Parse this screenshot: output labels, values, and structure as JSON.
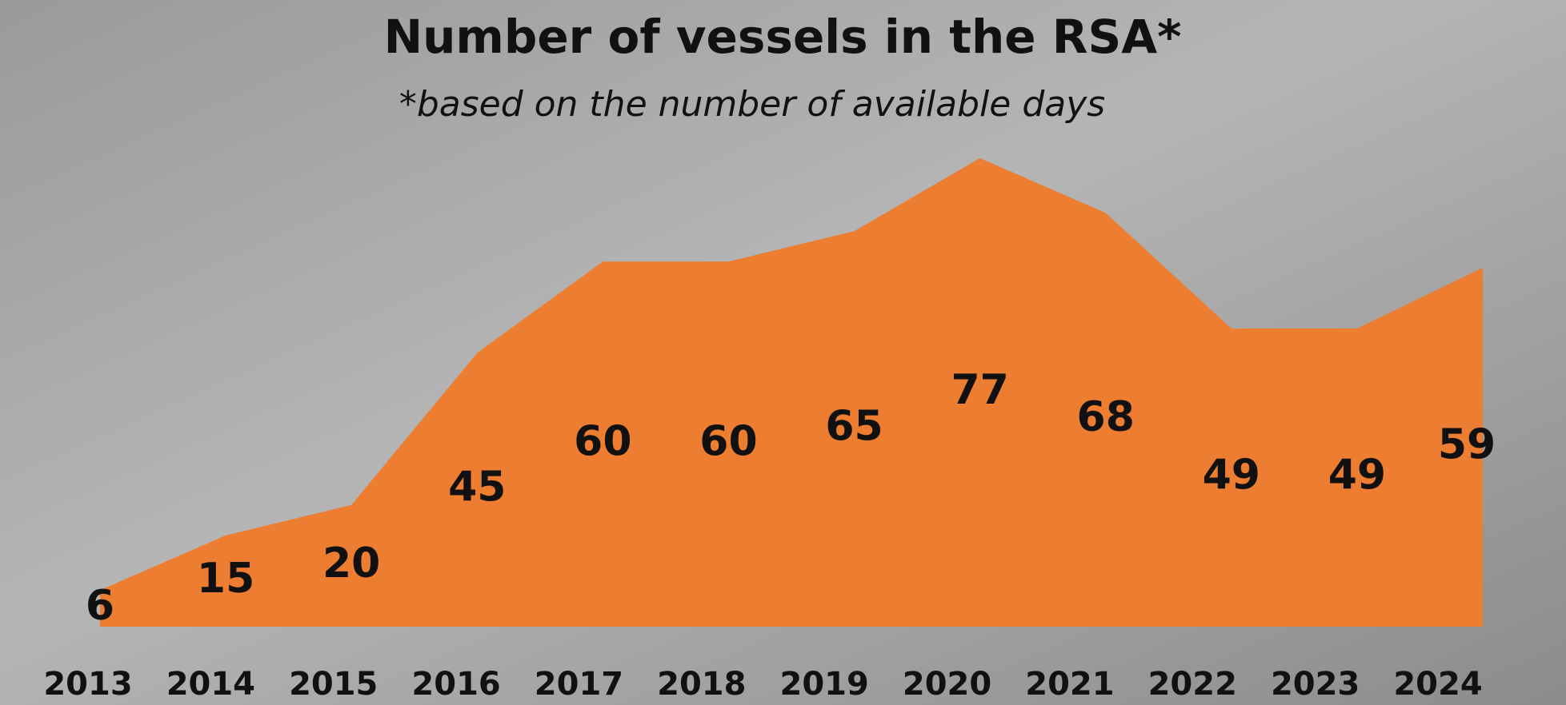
{
  "chart_data": {
    "type": "area",
    "title": "Number of vessels in the RSA*",
    "subtitle": "*based on the number of available days",
    "categories": [
      "2013",
      "2014",
      "2015",
      "2016",
      "2017",
      "2018",
      "2019",
      "2020",
      "2021",
      "2022",
      "2023",
      "2024"
    ],
    "values": [
      6,
      15,
      20,
      45,
      60,
      60,
      65,
      77,
      68,
      49,
      49,
      59
    ],
    "color": "#ed7d31",
    "ylim": [
      0,
      80
    ]
  }
}
